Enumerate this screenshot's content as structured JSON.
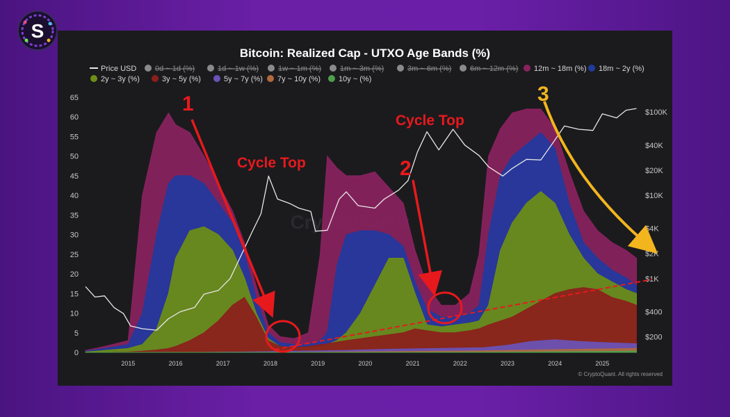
{
  "colors": {
    "page_bg": "#6a1fa6",
    "panel_bg": "#1b1b1e",
    "price_line": "#e8e8e8",
    "band_12m_18m": "#8a2260",
    "band_18m_2y": "#213a9e",
    "band_2y_3y": "#6d8e15",
    "band_3y_5y": "#8c1e1c",
    "band_5y_7y": "#6a52b8",
    "band_7y_10y": "#b06a3c",
    "band_10y": "#4fa04a",
    "annotation_red": "#e8191c",
    "annotation_yellow": "#f2b51e"
  },
  "logo": {
    "icon": "s-logo-icon"
  },
  "watermark": "CryptoQuant",
  "copyright": "© CryptoQuant. All rights reserved",
  "annotations": {
    "label_1": "1",
    "label_2": "2",
    "label_3": "3",
    "cycle_top_1": "Cycle Top",
    "cycle_top_2": "Cycle Top"
  },
  "chart_data": {
    "type": "area",
    "title": "Bitcoin: Realized Cap - UTXO Age Bands (%)",
    "legend": [
      {
        "name": "Price USD",
        "color": "#e8e8e8",
        "marker": "line",
        "hidden": false
      },
      {
        "name": "0d ~ 1d (%)",
        "color": "#8a8a8a",
        "marker": "dot",
        "hidden": true
      },
      {
        "name": "1d ~ 1w (%)",
        "color": "#8a8a8a",
        "marker": "dot",
        "hidden": true
      },
      {
        "name": "1w ~ 1m (%)",
        "color": "#8a8a8a",
        "marker": "dot",
        "hidden": true
      },
      {
        "name": "1m ~ 3m (%)",
        "color": "#8a8a8a",
        "marker": "dot",
        "hidden": true
      },
      {
        "name": "3m ~ 6m (%)",
        "color": "#8a8a8a",
        "marker": "dot",
        "hidden": true
      },
      {
        "name": "6m ~ 12m (%)",
        "color": "#8a8a8a",
        "marker": "dot",
        "hidden": true
      },
      {
        "name": "12m ~ 18m (%)",
        "color": "#8a2260",
        "marker": "dot",
        "hidden": false
      },
      {
        "name": "18m ~ 2y (%)",
        "color": "#213a9e",
        "marker": "dot",
        "hidden": false
      },
      {
        "name": "2y ~ 3y (%)",
        "color": "#6d8e15",
        "marker": "dot",
        "hidden": false
      },
      {
        "name": "3y ~ 5y (%)",
        "color": "#8c1e1c",
        "marker": "dot",
        "hidden": false
      },
      {
        "name": "5y ~ 7y (%)",
        "color": "#6a52b8",
        "marker": "dot",
        "hidden": false
      },
      {
        "name": "7y ~ 10y (%)",
        "color": "#b06a3c",
        "marker": "dot",
        "hidden": false
      },
      {
        "name": "10y ~ (%)",
        "color": "#4fa04a",
        "marker": "dot",
        "hidden": false
      }
    ],
    "x_ticks": [
      "2015",
      "2016",
      "2017",
      "2018",
      "2019",
      "2020",
      "2021",
      "2022",
      "2023",
      "2024",
      "2025"
    ],
    "x_range": [
      2014.1,
      2025.8
    ],
    "y_left_ticks": [
      0,
      5,
      10,
      15,
      20,
      25,
      30,
      35,
      40,
      45,
      50,
      55,
      60,
      65
    ],
    "y_left_range": [
      0,
      65
    ],
    "y_right_ticks": [
      "$200",
      "$400",
      "$1K",
      "$2K",
      "$4K",
      "$10K",
      "$20K",
      "$40K",
      "$100K"
    ],
    "y_right_values": [
      200,
      400,
      1000,
      2000,
      4000,
      10000,
      20000,
      40000,
      100000
    ],
    "y_right_range": [
      130,
      150000
    ],
    "y_right_scale": "log",
    "grid": false,
    "legend_position": "top",
    "series": [
      {
        "name": "12m ~ 18m (%)",
        "key": "b12m18m",
        "x": [
          2014.1,
          2014.5,
          2015.0,
          2015.3,
          2015.6,
          2015.85,
          2016.0,
          2016.3,
          2016.6,
          2016.9,
          2017.2,
          2017.45,
          2017.7,
          2017.95,
          2018.2,
          2018.5,
          2018.8,
          2019.05,
          2019.2,
          2019.4,
          2019.6,
          2019.9,
          2020.2,
          2020.5,
          2020.8,
          2021.05,
          2021.3,
          2021.6,
          2021.9,
          2022.2,
          2022.4,
          2022.6,
          2022.85,
          2023.1,
          2023.4,
          2023.7,
          2024.0,
          2024.3,
          2024.6,
          2024.9,
          2025.2,
          2025.5,
          2025.72
        ],
        "values": [
          0.5,
          1.5,
          3,
          40,
          56,
          61,
          58,
          56,
          50,
          43,
          36,
          28,
          17,
          7,
          4,
          3.5,
          5,
          25,
          50,
          47,
          45,
          45,
          46,
          42,
          38,
          26,
          17,
          12,
          12,
          15,
          25,
          50,
          57,
          61,
          62,
          62,
          57,
          46,
          36,
          31,
          28,
          26,
          24
        ]
      },
      {
        "name": "18m ~ 2y (%)",
        "key": "b18m2y",
        "x": [
          2014.1,
          2014.5,
          2015.0,
          2015.3,
          2015.6,
          2015.85,
          2016.0,
          2016.3,
          2016.6,
          2016.9,
          2017.2,
          2017.45,
          2017.7,
          2017.95,
          2018.2,
          2018.5,
          2018.8,
          2019.05,
          2019.2,
          2019.4,
          2019.6,
          2019.9,
          2020.2,
          2020.5,
          2020.8,
          2021.05,
          2021.3,
          2021.6,
          2021.9,
          2022.2,
          2022.4,
          2022.6,
          2022.85,
          2023.1,
          2023.4,
          2023.7,
          2024.0,
          2024.3,
          2024.6,
          2024.9,
          2025.2,
          2025.5,
          2025.72
        ],
        "values": [
          0.3,
          1,
          2,
          10,
          30,
          43,
          45,
          45,
          43,
          38,
          33,
          25,
          14,
          5,
          2.5,
          2,
          2,
          3,
          5,
          22,
          30,
          31,
          31,
          30,
          27,
          18,
          11,
          9,
          9,
          10,
          12,
          30,
          45,
          50,
          53,
          56,
          52,
          38,
          28,
          24,
          21,
          19,
          17
        ]
      },
      {
        "name": "2y ~ 3y (%)",
        "key": "b2y3y",
        "x": [
          2014.1,
          2014.5,
          2015.0,
          2015.3,
          2015.6,
          2015.85,
          2016.0,
          2016.3,
          2016.6,
          2016.9,
          2017.2,
          2017.45,
          2017.7,
          2017.95,
          2018.2,
          2018.5,
          2018.8,
          2019.05,
          2019.2,
          2019.4,
          2019.6,
          2019.9,
          2020.2,
          2020.5,
          2020.8,
          2021.05,
          2021.3,
          2021.6,
          2021.9,
          2022.2,
          2022.4,
          2022.6,
          2022.85,
          2023.1,
          2023.4,
          2023.7,
          2024.0,
          2024.3,
          2024.6,
          2024.9,
          2025.2,
          2025.5,
          2025.72
        ],
        "values": [
          0.1,
          0.5,
          1,
          2,
          6,
          15,
          24,
          31,
          32,
          30,
          26,
          19,
          10,
          3.5,
          1.5,
          1.2,
          1.2,
          1.5,
          2,
          3,
          5,
          10,
          17,
          24,
          24,
          15,
          7,
          6.5,
          7,
          7.5,
          8,
          12,
          26,
          33,
          38,
          41,
          38,
          30,
          24,
          20,
          18,
          16,
          15
        ]
      },
      {
        "name": "3y ~ 5y (%)",
        "key": "b3y5y",
        "x": [
          2014.1,
          2014.5,
          2015.0,
          2015.3,
          2015.6,
          2015.85,
          2016.0,
          2016.3,
          2016.6,
          2016.9,
          2017.2,
          2017.45,
          2017.7,
          2017.95,
          2018.2,
          2018.5,
          2018.8,
          2019.05,
          2019.2,
          2019.4,
          2019.6,
          2019.9,
          2020.2,
          2020.5,
          2020.8,
          2021.05,
          2021.3,
          2021.6,
          2021.9,
          2022.2,
          2022.4,
          2022.6,
          2022.85,
          2023.1,
          2023.4,
          2023.7,
          2024.0,
          2024.3,
          2024.6,
          2024.9,
          2025.2,
          2025.5,
          2025.72
        ],
        "values": [
          0,
          0,
          0.1,
          0.3,
          0.6,
          1,
          1.5,
          3,
          5,
          8,
          12,
          14,
          9,
          3,
          1.5,
          1.2,
          1.5,
          2,
          2.2,
          2.6,
          3,
          3.5,
          4,
          4.5,
          5,
          6,
          5.5,
          5,
          5,
          5.5,
          6,
          7,
          8,
          9,
          11,
          13,
          15,
          16,
          16.5,
          16,
          14,
          13,
          12
        ]
      },
      {
        "name": "5y ~ 7y (%)",
        "key": "b5y7y",
        "x": [
          2014.1,
          2016.5,
          2017.5,
          2018.5,
          2019.5,
          2020.5,
          2021.5,
          2022.5,
          2023.0,
          2023.5,
          2024.0,
          2024.5,
          2025.0,
          2025.72
        ],
        "values": [
          0,
          0,
          0.1,
          0.3,
          0.5,
          0.8,
          1,
          1.2,
          1.8,
          2.8,
          3.2,
          2.8,
          2.5,
          2.2
        ]
      },
      {
        "name": "7y ~ 10y (%)",
        "key": "b7y10y",
        "x": [
          2014.1,
          2016.5,
          2018.5,
          2019.5,
          2020.5,
          2021.5,
          2022.5,
          2023.5,
          2024.5,
          2025.72
        ],
        "values": [
          0,
          0,
          0,
          0.1,
          0.2,
          0.3,
          0.4,
          0.6,
          0.8,
          1.0
        ]
      },
      {
        "name": "10y ~ (%)",
        "key": "b10y",
        "x": [
          2014.1,
          2021.0,
          2022.5,
          2023.5,
          2024.5,
          2025.72
        ],
        "values": [
          0,
          0,
          0.05,
          0.1,
          0.2,
          0.3
        ]
      },
      {
        "name": "Price USD",
        "key": "price",
        "axis": "right",
        "x": [
          2014.1,
          2014.3,
          2014.5,
          2014.7,
          2014.9,
          2015.05,
          2015.3,
          2015.6,
          2015.85,
          2016.1,
          2016.4,
          2016.6,
          2016.9,
          2017.15,
          2017.4,
          2017.6,
          2017.8,
          2017.96,
          2018.15,
          2018.4,
          2018.6,
          2018.85,
          2018.95,
          2019.2,
          2019.45,
          2019.6,
          2019.85,
          2020.2,
          2020.4,
          2020.7,
          2020.9,
          2021.1,
          2021.3,
          2021.55,
          2021.85,
          2022.1,
          2022.4,
          2022.6,
          2022.9,
          2023.1,
          2023.4,
          2023.7,
          2023.95,
          2024.2,
          2024.5,
          2024.8,
          2025.0,
          2025.3,
          2025.5,
          2025.72
        ],
        "values": [
          800,
          600,
          620,
          450,
          380,
          270,
          250,
          240,
          330,
          400,
          450,
          650,
          720,
          1000,
          2000,
          3500,
          6000,
          17000,
          9000,
          8000,
          7000,
          6400,
          3700,
          3800,
          9000,
          11000,
          7500,
          7000,
          9000,
          11500,
          15000,
          33000,
          58000,
          35000,
          62000,
          40000,
          30000,
          22000,
          17000,
          21000,
          27000,
          26500,
          42000,
          68000,
          62000,
          60000,
          95000,
          85000,
          105000,
          110000
        ]
      }
    ]
  }
}
